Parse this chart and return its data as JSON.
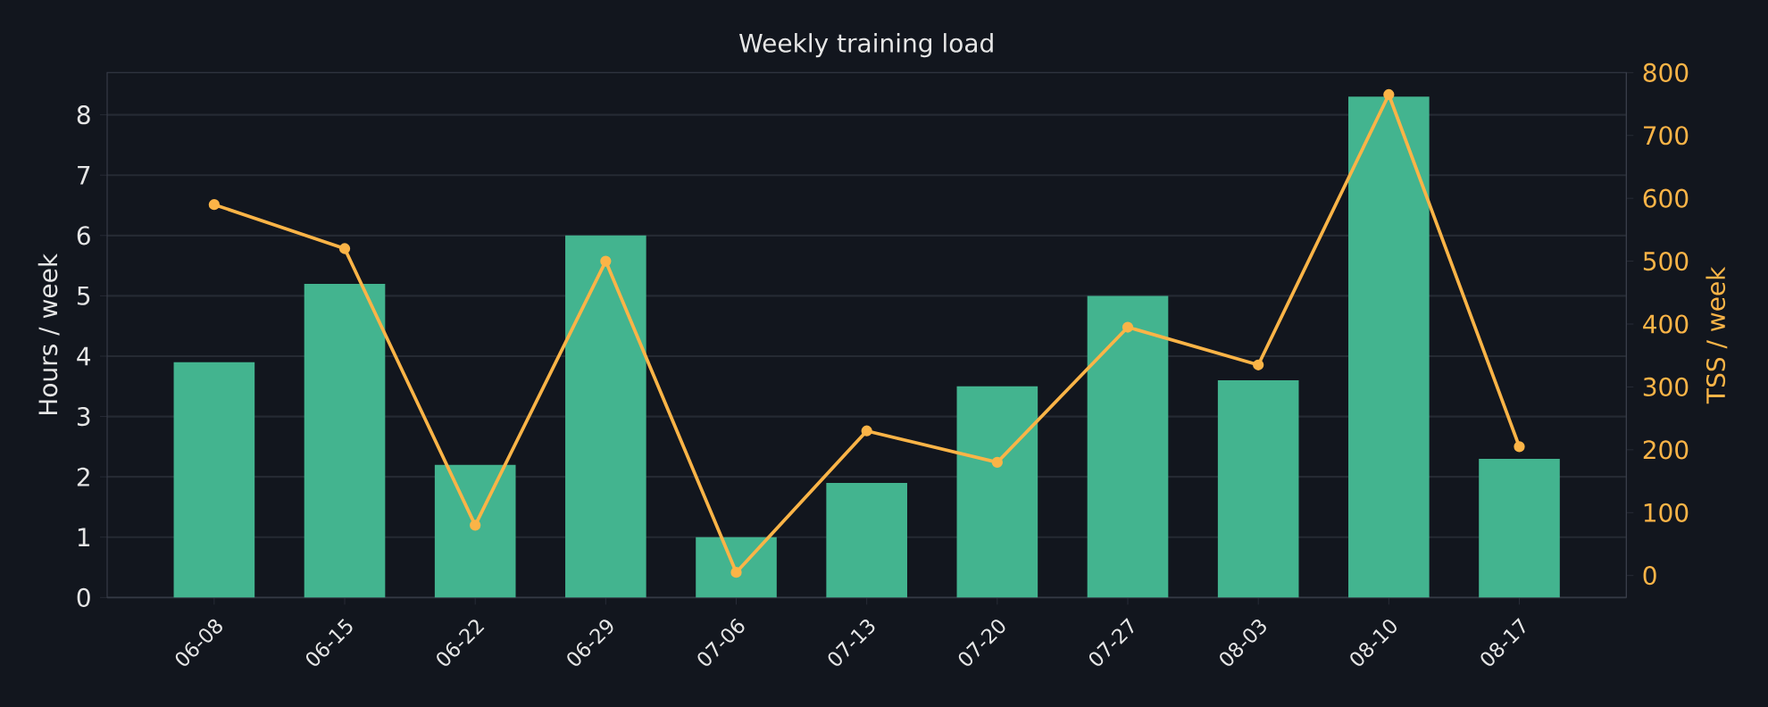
{
  "chart_data": {
    "type": "bar",
    "title": "Weekly training load",
    "ylabel": "Hours / week",
    "y2label": "TSS / week",
    "categories": [
      "06-08",
      "06-15",
      "06-22",
      "06-29",
      "07-06",
      "07-13",
      "07-20",
      "07-27",
      "08-03",
      "08-10",
      "08-17"
    ],
    "ylim": [
      0,
      8.7
    ],
    "yticks": [
      0,
      1,
      2,
      3,
      4,
      5,
      6,
      7,
      8
    ],
    "y2lim": [
      -35,
      800
    ],
    "y2ticks": [
      0,
      100,
      200,
      300,
      400,
      500,
      600,
      700,
      800
    ],
    "grid": "y",
    "series": [
      {
        "color": "#43b48f",
        "values": [
          3.9,
          5.2,
          2.2,
          6.0,
          1.0,
          1.9,
          3.5,
          5.0,
          3.6,
          8.3,
          2.3
        ]
      },
      {
        "type": "line",
        "axis": "y2",
        "color": "#fbb447",
        "marker": "circle",
        "values": [
          590,
          520,
          80,
          500,
          5,
          230,
          180,
          395,
          335,
          765,
          205
        ]
      }
    ]
  }
}
